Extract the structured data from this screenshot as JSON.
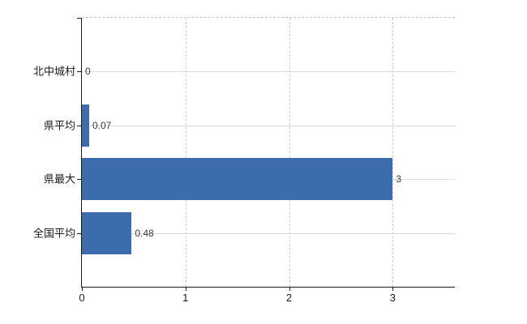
{
  "chart_data": {
    "type": "bar",
    "orientation": "horizontal",
    "title": "",
    "xlabel": "",
    "ylabel": "",
    "categories": [
      "北中城村",
      "県平均",
      "県最大",
      "全国平均"
    ],
    "values": [
      0,
      0.07,
      3,
      0.48
    ],
    "value_labels": [
      "0",
      "0.07",
      "3",
      "0.48"
    ],
    "xlim": [
      0,
      3.6
    ],
    "xticks": [
      0,
      1,
      2,
      3
    ],
    "xtick_labels": [
      "0",
      "1",
      "2",
      "3"
    ],
    "grid": true,
    "legend": "none",
    "colors": {
      "bar": "#3d6cac",
      "axis": "#1a1a1a",
      "h_gridline": "#d7dbd3",
      "v_gridline": "#ccd2cb",
      "top_border": "#c6c6c6",
      "value_label": "#3d3d3d",
      "tick_label": "#1a1a1a",
      "background": "#ffffff"
    }
  }
}
